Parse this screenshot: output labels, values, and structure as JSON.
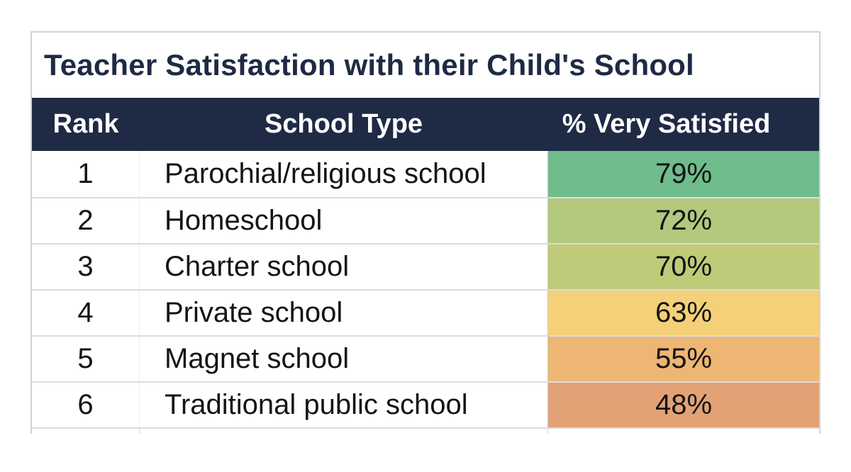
{
  "table": {
    "title": "Teacher Satisfaction with their Child's School",
    "columns": [
      "Rank",
      "School Type",
      "% Very Satisfied"
    ],
    "rows": [
      {
        "rank": "1",
        "school_type": "Parochial/religious school",
        "percent": "79%",
        "color": "#6fbc8d"
      },
      {
        "rank": "2",
        "school_type": "Homeschool",
        "percent": "72%",
        "color": "#b2c97e"
      },
      {
        "rank": "3",
        "school_type": "Charter school",
        "percent": "70%",
        "color": "#c0cb79"
      },
      {
        "rank": "4",
        "school_type": "Private school",
        "percent": "63%",
        "color": "#f4d078"
      },
      {
        "rank": "5",
        "school_type": "Magnet school",
        "percent": "55%",
        "color": "#edb672"
      },
      {
        "rank": "6",
        "school_type": "Traditional public school",
        "percent": "48%",
        "color": "#e2a276"
      }
    ]
  },
  "colors": {
    "header_bg": "#1f2a44",
    "header_text": "#ffffff",
    "title_text": "#1f2a44",
    "gridline": "#dcdcdc",
    "outer_border": "#d2d2d7",
    "body_text": "#141414"
  },
  "chart_data": {
    "type": "table",
    "title": "Teacher Satisfaction with their Child's School",
    "columns": [
      "Rank",
      "School Type",
      "% Very Satisfied"
    ],
    "rows": [
      [
        1,
        "Parochial/religious school",
        79
      ],
      [
        2,
        "Homeschool",
        72
      ],
      [
        3,
        "Charter school",
        70
      ],
      [
        4,
        "Private school",
        63
      ],
      [
        5,
        "Magnet school",
        55
      ],
      [
        6,
        "Traditional public school",
        48
      ]
    ],
    "value_unit": "percent",
    "cell_fill_scale": [
      "#6fbc8d",
      "#b2c97e",
      "#c0cb79",
      "#f4d078",
      "#edb672",
      "#e2a276"
    ],
    "layout": "ranked table, value column color-coded green (high) to orange (low), cropped partial row at bottom"
  }
}
